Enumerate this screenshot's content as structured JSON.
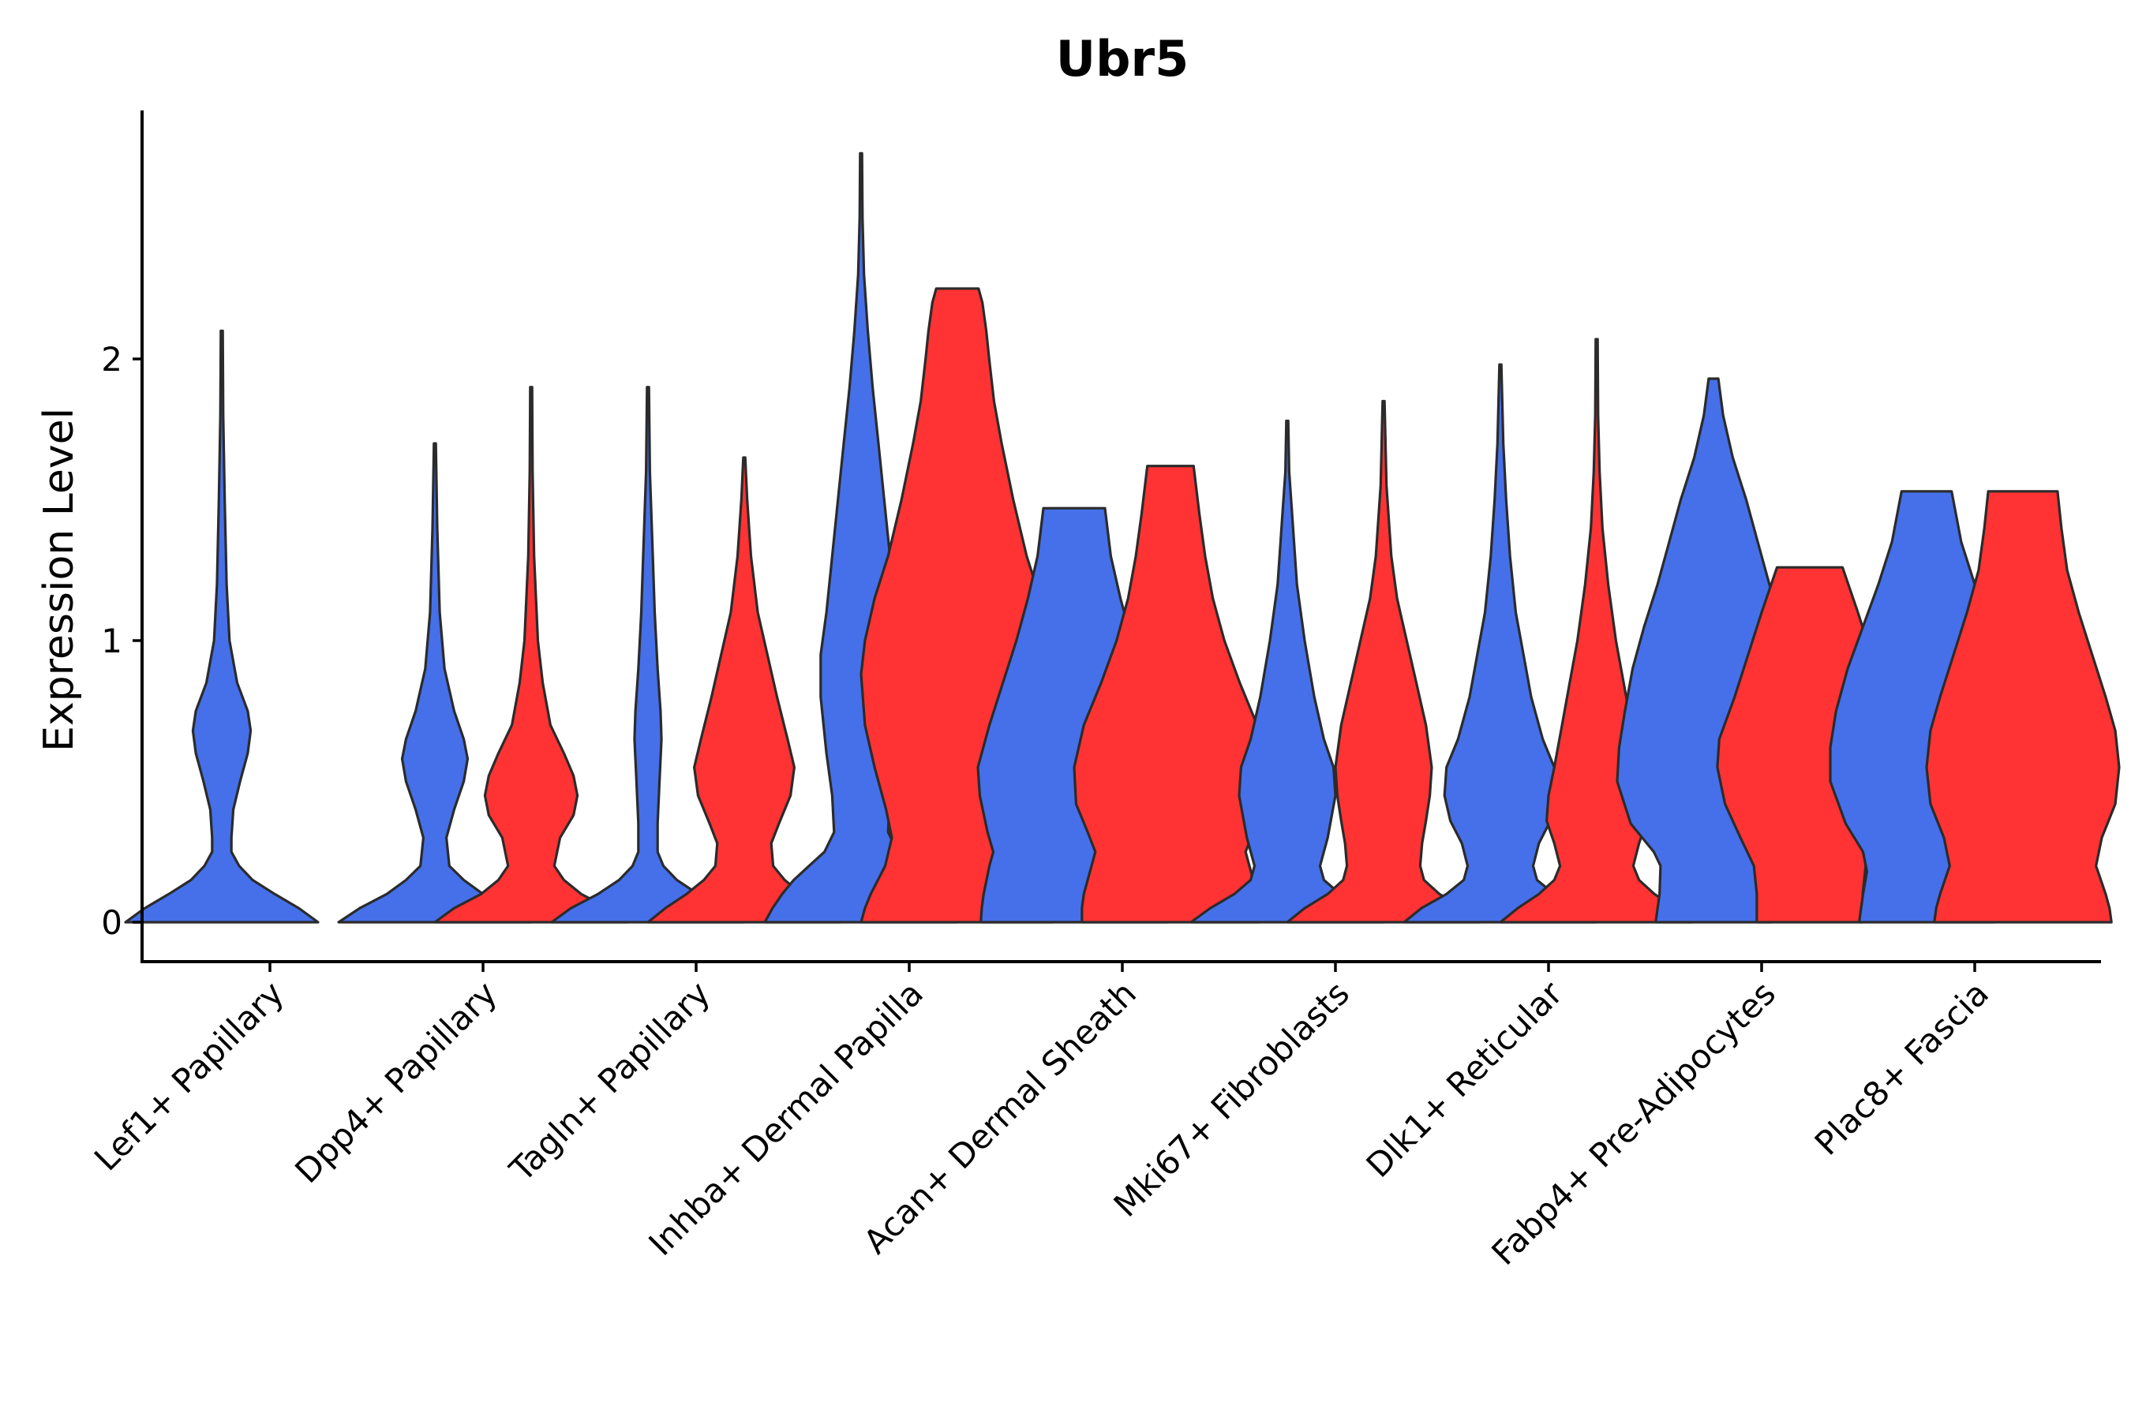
{
  "chart_data": {
    "type": "violin",
    "title": "Ubr5",
    "xlabel": "",
    "ylabel": "Expression Level",
    "yticks": [
      0,
      1,
      2
    ],
    "ylim": [
      -0.14,
      2.9
    ],
    "grid": false,
    "legend": "none",
    "colors": {
      "group_a": "#4570EA",
      "group_b": "#FF3333"
    },
    "categories": [
      "Lef1+ Papillary",
      "Dpp4+ Papillary",
      "Tagln+ Papillary",
      "Inhba+ Dermal Papilla",
      "Acan+ Dermal Sheath",
      "Mki67+ Fibroblasts",
      "Dlk1+ Reticular",
      "Fabp4+ Pre-Adipocytes",
      "Plac8+ Fascia"
    ],
    "violins": [
      {
        "category": 0,
        "group": "a",
        "profile": [
          [
            0,
            1.0
          ],
          [
            0.05,
            0.8
          ],
          [
            0.1,
            0.55
          ],
          [
            0.15,
            0.32
          ],
          [
            0.2,
            0.18
          ],
          [
            0.25,
            0.1
          ],
          [
            0.3,
            0.1
          ],
          [
            0.4,
            0.12
          ],
          [
            0.5,
            0.19
          ],
          [
            0.6,
            0.27
          ],
          [
            0.68,
            0.3
          ],
          [
            0.75,
            0.27
          ],
          [
            0.85,
            0.16
          ],
          [
            1.0,
            0.08
          ],
          [
            1.2,
            0.05
          ],
          [
            1.5,
            0.03
          ],
          [
            1.8,
            0.015
          ],
          [
            2.1,
            0.01
          ]
        ]
      },
      {
        "category": 1,
        "group": "a",
        "profile": [
          [
            0,
            1.0
          ],
          [
            0.05,
            0.78
          ],
          [
            0.1,
            0.5
          ],
          [
            0.15,
            0.3
          ],
          [
            0.2,
            0.15
          ],
          [
            0.3,
            0.12
          ],
          [
            0.4,
            0.2
          ],
          [
            0.5,
            0.3
          ],
          [
            0.58,
            0.34
          ],
          [
            0.65,
            0.3
          ],
          [
            0.75,
            0.2
          ],
          [
            0.9,
            0.1
          ],
          [
            1.1,
            0.05
          ],
          [
            1.4,
            0.025
          ],
          [
            1.7,
            0.01
          ]
        ]
      },
      {
        "category": 1,
        "group": "b",
        "profile": [
          [
            0,
            1.0
          ],
          [
            0.05,
            0.8
          ],
          [
            0.1,
            0.52
          ],
          [
            0.15,
            0.34
          ],
          [
            0.2,
            0.24
          ],
          [
            0.3,
            0.3
          ],
          [
            0.38,
            0.44
          ],
          [
            0.45,
            0.48
          ],
          [
            0.52,
            0.44
          ],
          [
            0.6,
            0.34
          ],
          [
            0.7,
            0.2
          ],
          [
            0.85,
            0.12
          ],
          [
            1.0,
            0.07
          ],
          [
            1.3,
            0.03
          ],
          [
            1.6,
            0.015
          ],
          [
            1.9,
            0.01
          ]
        ]
      },
      {
        "category": 2,
        "group": "a",
        "profile": [
          [
            0,
            1.0
          ],
          [
            0.05,
            0.8
          ],
          [
            0.1,
            0.52
          ],
          [
            0.15,
            0.3
          ],
          [
            0.2,
            0.16
          ],
          [
            0.25,
            0.1
          ],
          [
            0.35,
            0.1
          ],
          [
            0.5,
            0.12
          ],
          [
            0.65,
            0.14
          ],
          [
            0.75,
            0.13
          ],
          [
            0.9,
            0.1
          ],
          [
            1.1,
            0.07
          ],
          [
            1.3,
            0.05
          ],
          [
            1.6,
            0.02
          ],
          [
            1.9,
            0.01
          ]
        ]
      },
      {
        "category": 2,
        "group": "b",
        "profile": [
          [
            0,
            1.0
          ],
          [
            0.05,
            0.82
          ],
          [
            0.1,
            0.6
          ],
          [
            0.15,
            0.42
          ],
          [
            0.2,
            0.3
          ],
          [
            0.28,
            0.28
          ],
          [
            0.35,
            0.36
          ],
          [
            0.45,
            0.48
          ],
          [
            0.55,
            0.52
          ],
          [
            0.65,
            0.45
          ],
          [
            0.8,
            0.34
          ],
          [
            0.95,
            0.24
          ],
          [
            1.1,
            0.14
          ],
          [
            1.3,
            0.07
          ],
          [
            1.5,
            0.03
          ],
          [
            1.65,
            0.01
          ]
        ]
      },
      {
        "category": 3,
        "group": "a",
        "profile": [
          [
            0,
            1.0
          ],
          [
            0.05,
            0.92
          ],
          [
            0.1,
            0.82
          ],
          [
            0.15,
            0.7
          ],
          [
            0.2,
            0.54
          ],
          [
            0.25,
            0.38
          ],
          [
            0.32,
            0.28
          ],
          [
            0.45,
            0.3
          ],
          [
            0.6,
            0.36
          ],
          [
            0.8,
            0.42
          ],
          [
            0.95,
            0.42
          ],
          [
            1.1,
            0.36
          ],
          [
            1.3,
            0.3
          ],
          [
            1.5,
            0.24
          ],
          [
            1.7,
            0.18
          ],
          [
            1.9,
            0.12
          ],
          [
            2.1,
            0.07
          ],
          [
            2.3,
            0.03
          ],
          [
            2.5,
            0.015
          ],
          [
            2.73,
            0.01
          ]
        ]
      },
      {
        "category": 3,
        "group": "b",
        "profile": [
          [
            0,
            1.0
          ],
          [
            0.05,
            0.96
          ],
          [
            0.1,
            0.9
          ],
          [
            0.2,
            0.75
          ],
          [
            0.3,
            0.68
          ],
          [
            0.4,
            0.74
          ],
          [
            0.55,
            0.86
          ],
          [
            0.7,
            0.96
          ],
          [
            0.88,
            1.0
          ],
          [
            1.0,
            0.96
          ],
          [
            1.15,
            0.86
          ],
          [
            1.3,
            0.72
          ],
          [
            1.5,
            0.58
          ],
          [
            1.7,
            0.46
          ],
          [
            1.85,
            0.38
          ],
          [
            2.0,
            0.33
          ],
          [
            2.1,
            0.3
          ],
          [
            2.2,
            0.26
          ],
          [
            2.25,
            0.22
          ]
        ]
      },
      {
        "category": 4,
        "group": "a",
        "profile": [
          [
            0,
            0.97
          ],
          [
            0.05,
            0.96
          ],
          [
            0.1,
            0.94
          ],
          [
            0.2,
            0.88
          ],
          [
            0.25,
            0.84
          ],
          [
            0.32,
            0.9
          ],
          [
            0.45,
            0.98
          ],
          [
            0.55,
            1.0
          ],
          [
            0.7,
            0.88
          ],
          [
            0.85,
            0.74
          ],
          [
            1.0,
            0.6
          ],
          [
            1.15,
            0.48
          ],
          [
            1.3,
            0.38
          ],
          [
            1.47,
            0.32
          ]
        ]
      },
      {
        "category": 4,
        "group": "b",
        "profile": [
          [
            0,
            0.92
          ],
          [
            0.05,
            0.92
          ],
          [
            0.1,
            0.9
          ],
          [
            0.2,
            0.82
          ],
          [
            0.25,
            0.78
          ],
          [
            0.32,
            0.86
          ],
          [
            0.42,
            0.98
          ],
          [
            0.55,
            1.0
          ],
          [
            0.7,
            0.9
          ],
          [
            0.85,
            0.72
          ],
          [
            1.0,
            0.56
          ],
          [
            1.15,
            0.44
          ],
          [
            1.3,
            0.36
          ],
          [
            1.45,
            0.3
          ],
          [
            1.62,
            0.24
          ]
        ]
      },
      {
        "category": 5,
        "group": "a",
        "profile": [
          [
            0,
            1.0
          ],
          [
            0.05,
            0.8
          ],
          [
            0.1,
            0.55
          ],
          [
            0.15,
            0.38
          ],
          [
            0.2,
            0.34
          ],
          [
            0.3,
            0.42
          ],
          [
            0.45,
            0.5
          ],
          [
            0.55,
            0.48
          ],
          [
            0.65,
            0.38
          ],
          [
            0.8,
            0.28
          ],
          [
            1.0,
            0.18
          ],
          [
            1.2,
            0.1
          ],
          [
            1.45,
            0.05
          ],
          [
            1.6,
            0.02
          ],
          [
            1.78,
            0.01
          ]
        ]
      },
      {
        "category": 5,
        "group": "b",
        "profile": [
          [
            0,
            1.0
          ],
          [
            0.05,
            0.82
          ],
          [
            0.1,
            0.58
          ],
          [
            0.15,
            0.42
          ],
          [
            0.2,
            0.38
          ],
          [
            0.28,
            0.4
          ],
          [
            0.36,
            0.44
          ],
          [
            0.45,
            0.48
          ],
          [
            0.55,
            0.5
          ],
          [
            0.7,
            0.44
          ],
          [
            0.85,
            0.34
          ],
          [
            1.0,
            0.24
          ],
          [
            1.15,
            0.14
          ],
          [
            1.3,
            0.08
          ],
          [
            1.55,
            0.03
          ],
          [
            1.85,
            0.01
          ]
        ]
      },
      {
        "category": 6,
        "group": "a",
        "profile": [
          [
            0,
            1.0
          ],
          [
            0.05,
            0.82
          ],
          [
            0.1,
            0.56
          ],
          [
            0.15,
            0.38
          ],
          [
            0.2,
            0.34
          ],
          [
            0.28,
            0.4
          ],
          [
            0.36,
            0.52
          ],
          [
            0.45,
            0.58
          ],
          [
            0.55,
            0.56
          ],
          [
            0.65,
            0.44
          ],
          [
            0.8,
            0.32
          ],
          [
            0.95,
            0.24
          ],
          [
            1.1,
            0.16
          ],
          [
            1.3,
            0.1
          ],
          [
            1.5,
            0.06
          ],
          [
            1.7,
            0.03
          ],
          [
            1.98,
            0.01
          ]
        ]
      },
      {
        "category": 6,
        "group": "b",
        "profile": [
          [
            0,
            1.0
          ],
          [
            0.05,
            0.82
          ],
          [
            0.1,
            0.6
          ],
          [
            0.15,
            0.44
          ],
          [
            0.2,
            0.38
          ],
          [
            0.28,
            0.44
          ],
          [
            0.36,
            0.52
          ],
          [
            0.45,
            0.5
          ],
          [
            0.55,
            0.44
          ],
          [
            0.7,
            0.36
          ],
          [
            0.85,
            0.28
          ],
          [
            1.0,
            0.2
          ],
          [
            1.2,
            0.12
          ],
          [
            1.4,
            0.06
          ],
          [
            1.6,
            0.03
          ],
          [
            1.8,
            0.015
          ],
          [
            2.07,
            0.01
          ]
        ]
      },
      {
        "category": 7,
        "group": "a",
        "profile": [
          [
            0,
            0.6
          ],
          [
            0.05,
            0.58
          ],
          [
            0.1,
            0.56
          ],
          [
            0.2,
            0.55
          ],
          [
            0.25,
            0.62
          ],
          [
            0.35,
            0.86
          ],
          [
            0.5,
            1.0
          ],
          [
            0.62,
            0.98
          ],
          [
            0.75,
            0.92
          ],
          [
            0.9,
            0.84
          ],
          [
            1.05,
            0.72
          ],
          [
            1.2,
            0.58
          ],
          [
            1.35,
            0.46
          ],
          [
            1.5,
            0.34
          ],
          [
            1.65,
            0.2
          ],
          [
            1.8,
            0.1
          ],
          [
            1.93,
            0.05
          ]
        ]
      },
      {
        "category": 7,
        "group": "b",
        "profile": [
          [
            0,
            0.55
          ],
          [
            0.1,
            0.55
          ],
          [
            0.2,
            0.58
          ],
          [
            0.3,
            0.72
          ],
          [
            0.42,
            0.88
          ],
          [
            0.55,
            0.96
          ],
          [
            0.65,
            0.94
          ],
          [
            0.8,
            0.78
          ],
          [
            0.95,
            0.64
          ],
          [
            1.1,
            0.5
          ],
          [
            1.2,
            0.4
          ],
          [
            1.26,
            0.34
          ]
        ]
      },
      {
        "category": 8,
        "group": "a",
        "profile": [
          [
            0,
            0.7
          ],
          [
            0.05,
            0.68
          ],
          [
            0.1,
            0.66
          ],
          [
            0.18,
            0.62
          ],
          [
            0.25,
            0.66
          ],
          [
            0.35,
            0.84
          ],
          [
            0.5,
            1.0
          ],
          [
            0.62,
            1.0
          ],
          [
            0.75,
            0.94
          ],
          [
            0.9,
            0.82
          ],
          [
            1.05,
            0.66
          ],
          [
            1.2,
            0.5
          ],
          [
            1.35,
            0.36
          ],
          [
            1.53,
            0.26
          ]
        ]
      },
      {
        "category": 8,
        "group": "b",
        "profile": [
          [
            0,
            0.92
          ],
          [
            0.05,
            0.9
          ],
          [
            0.1,
            0.86
          ],
          [
            0.2,
            0.76
          ],
          [
            0.3,
            0.82
          ],
          [
            0.42,
            0.96
          ],
          [
            0.55,
            1.0
          ],
          [
            0.68,
            0.96
          ],
          [
            0.8,
            0.86
          ],
          [
            0.95,
            0.72
          ],
          [
            1.1,
            0.58
          ],
          [
            1.25,
            0.46
          ],
          [
            1.4,
            0.4
          ],
          [
            1.53,
            0.36
          ]
        ]
      }
    ]
  }
}
